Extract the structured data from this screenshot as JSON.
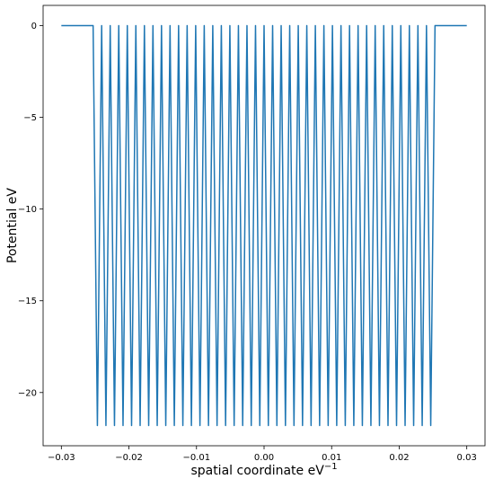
{
  "chart_data": {
    "type": "line",
    "title": "",
    "xlabel": "spatial coordinate eV",
    "xlabel_superscript": "−1",
    "ylabel": "Potential eV",
    "xlim": [
      -0.0327,
      0.0327
    ],
    "ylim": [
      -22.9,
      1.1
    ],
    "x_ticks": [
      -0.03,
      -0.02,
      -0.01,
      0.0,
      0.01,
      0.02,
      0.03
    ],
    "x_tick_labels": [
      "−0.03",
      "−0.02",
      "−0.01",
      "0.00",
      "0.01",
      "0.02",
      "0.03"
    ],
    "y_ticks": [
      0,
      -5,
      -10,
      -15,
      -20
    ],
    "y_tick_labels": [
      "0",
      "−5",
      "−10",
      "−15",
      "−20"
    ],
    "grid": false,
    "series": [
      {
        "color": "#1f77b4",
        "flat_regions": [
          [
            -0.03,
            -0.0253
          ],
          [
            0.0253,
            0.03
          ]
        ],
        "well_region": [
          -0.0253,
          0.0253
        ],
        "well_count": 40,
        "min_value": -21.8,
        "max_value": 0
      }
    ]
  }
}
